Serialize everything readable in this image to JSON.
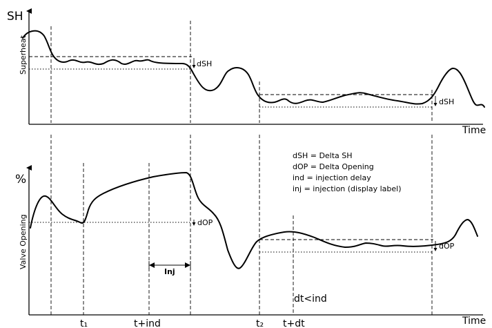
{
  "top_chart": {
    "y_label": "SH",
    "y_axis_title": "Superheat",
    "x_label": "Time",
    "delta_label_1": "dSH",
    "delta_label_2": "dSH"
  },
  "bottom_chart": {
    "y_label": "%",
    "y_axis_title": "Valve Opening",
    "x_label": "Time",
    "delta_label_1": "dOP",
    "delta_label_2": "dOP",
    "injection_label": "Inj",
    "interval_label": "dt<ind",
    "tick_labels": [
      "t₁",
      "t+ind",
      "t₂",
      "t+dt"
    ]
  },
  "legend": [
    "dSH = Delta SH",
    "dOP = Delta Opening",
    "ind = injection delay",
    "inj = injection (display label)"
  ]
}
